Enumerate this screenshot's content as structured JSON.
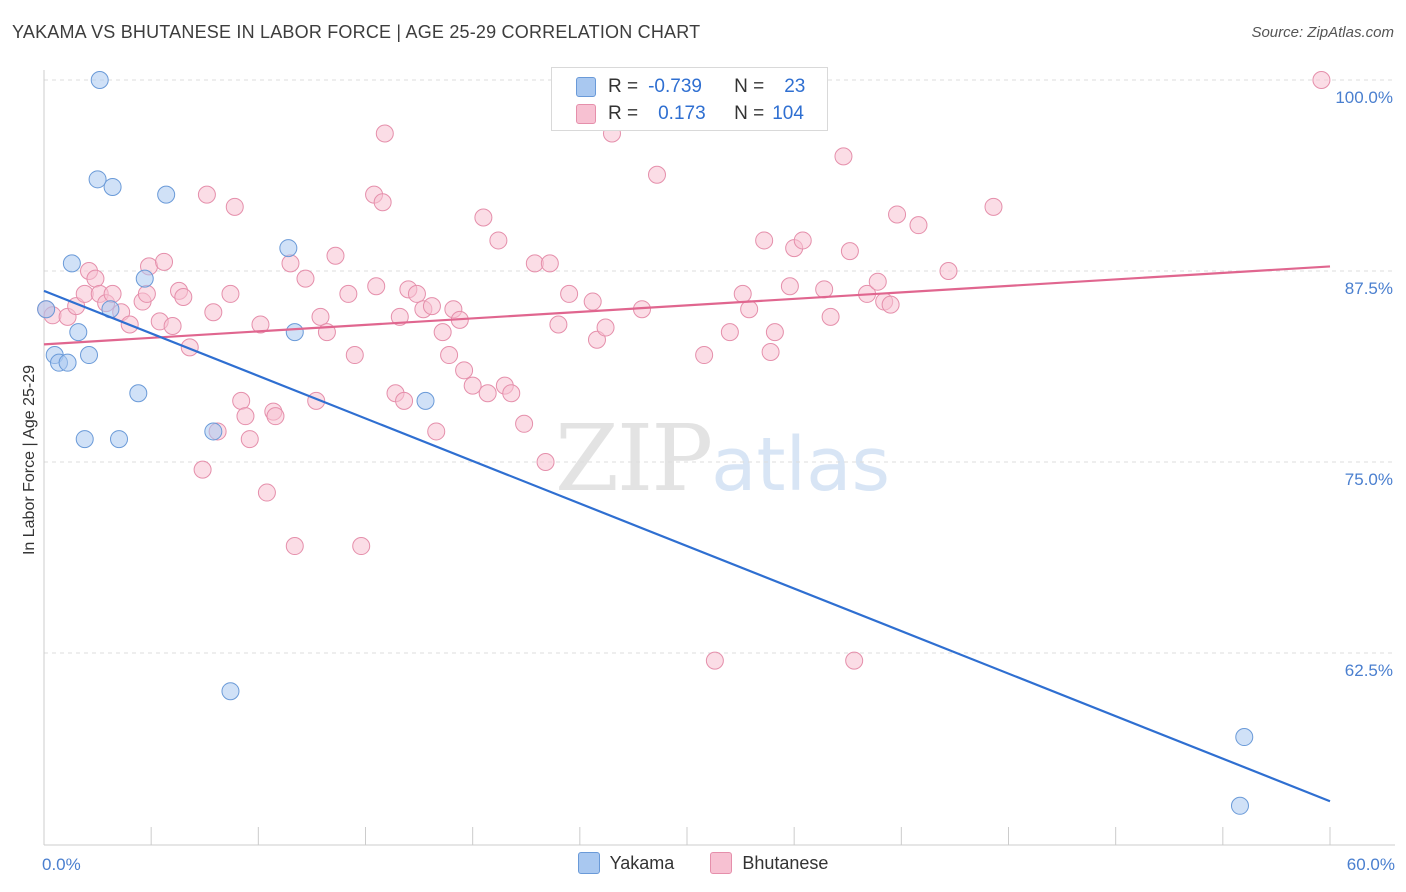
{
  "title": "YAKAMA VS BHUTANESE IN LABOR FORCE | AGE 25-29 CORRELATION CHART",
  "source": "Source: ZipAtlas.com",
  "watermark": {
    "zip": "ZIP",
    "atlas": "atlas"
  },
  "legend": {
    "yakama": {
      "r_label": "R =",
      "r_value": "-0.739",
      "n_label": "N =",
      "n_value": "23"
    },
    "bhutanese": {
      "r_label": "R =",
      "r_value": "0.173",
      "n_label": "N =",
      "n_value": "104"
    }
  },
  "colors": {
    "yakama_fill": "#a9c8f0",
    "yakama_stroke": "#6a9ad8",
    "yakama_line": "#2f6fd1",
    "bhutanese_fill": "#f7c1d2",
    "bhutanese_stroke": "#e58fab",
    "bhutanese_line": "#e0668f",
    "grid": "#dddddd",
    "tick_label": "#4a7fcf"
  },
  "chart_data": {
    "type": "scatter",
    "title": "YAKAMA VS BHUTANESE IN LABOR FORCE | AGE 25-29 CORRELATION CHART",
    "xlabel": "",
    "ylabel": "In Labor Force | Age 25-29",
    "xlim": [
      0,
      60
    ],
    "ylim": [
      51.0,
      102.0
    ],
    "x_tick_labels": [
      {
        "value": 0,
        "label": "0.0%"
      },
      {
        "value": 60,
        "label": "60.0%"
      }
    ],
    "y_tick_labels": [
      {
        "value": 100.0,
        "label": "100.0%"
      },
      {
        "value": 87.5,
        "label": "87.5%"
      },
      {
        "value": 75.0,
        "label": "75.0%"
      },
      {
        "value": 62.5,
        "label": "62.5%"
      }
    ],
    "grid": true,
    "legend_position": "bottom-center",
    "series": [
      {
        "name": "Yakama",
        "points": [
          [
            0.1,
            85.0
          ],
          [
            0.5,
            82.0
          ],
          [
            0.7,
            81.5
          ],
          [
            1.1,
            81.5
          ],
          [
            1.3,
            88.0
          ],
          [
            1.6,
            83.5
          ],
          [
            1.9,
            76.5
          ],
          [
            2.1,
            82.0
          ],
          [
            2.5,
            93.5
          ],
          [
            2.6,
            100.0
          ],
          [
            3.2,
            93.0
          ],
          [
            3.5,
            76.5
          ],
          [
            3.1,
            85.0
          ],
          [
            4.4,
            79.5
          ],
          [
            4.7,
            87.0
          ],
          [
            5.7,
            92.5
          ],
          [
            7.9,
            77.0
          ],
          [
            8.7,
            60.0
          ],
          [
            11.4,
            89.0
          ],
          [
            11.7,
            83.5
          ],
          [
            17.8,
            79.0
          ],
          [
            56.0,
            57.0
          ],
          [
            55.8,
            52.5
          ]
        ],
        "trend": {
          "x": [
            0.0,
            60.0
          ],
          "y": [
            86.2,
            52.8
          ]
        }
      },
      {
        "name": "Bhutanese",
        "points": [
          [
            0.1,
            85.0
          ],
          [
            0.4,
            84.6
          ],
          [
            1.1,
            84.5
          ],
          [
            1.5,
            85.2
          ],
          [
            1.9,
            86.0
          ],
          [
            2.1,
            87.5
          ],
          [
            2.4,
            87.0
          ],
          [
            2.6,
            86.0
          ],
          [
            2.9,
            85.4
          ],
          [
            3.2,
            86.0
          ],
          [
            3.6,
            84.8
          ],
          [
            4.0,
            84.0
          ],
          [
            4.6,
            85.5
          ],
          [
            4.8,
            86.0
          ],
          [
            4.9,
            87.8
          ],
          [
            5.4,
            84.2
          ],
          [
            5.6,
            88.1
          ],
          [
            6.0,
            83.9
          ],
          [
            6.3,
            86.2
          ],
          [
            6.5,
            85.8
          ],
          [
            6.8,
            82.5
          ],
          [
            7.4,
            74.5
          ],
          [
            7.6,
            92.5
          ],
          [
            7.9,
            84.8
          ],
          [
            8.1,
            77.0
          ],
          [
            8.7,
            86.0
          ],
          [
            8.9,
            91.7
          ],
          [
            9.2,
            79.0
          ],
          [
            9.4,
            78.0
          ],
          [
            9.6,
            76.5
          ],
          [
            10.1,
            84.0
          ],
          [
            10.4,
            73.0
          ],
          [
            10.7,
            78.3
          ],
          [
            10.8,
            78.0
          ],
          [
            11.5,
            88.0
          ],
          [
            11.7,
            69.5
          ],
          [
            12.2,
            87.0
          ],
          [
            12.7,
            79.0
          ],
          [
            12.9,
            84.5
          ],
          [
            13.2,
            83.5
          ],
          [
            13.6,
            88.5
          ],
          [
            14.2,
            86.0
          ],
          [
            14.5,
            82.0
          ],
          [
            14.8,
            69.5
          ],
          [
            15.4,
            92.5
          ],
          [
            15.5,
            86.5
          ],
          [
            15.8,
            92.0
          ],
          [
            15.9,
            96.5
          ],
          [
            16.4,
            79.5
          ],
          [
            16.6,
            84.5
          ],
          [
            16.8,
            79.0
          ],
          [
            17.0,
            86.3
          ],
          [
            17.4,
            86.0
          ],
          [
            17.7,
            85.0
          ],
          [
            18.1,
            85.2
          ],
          [
            18.3,
            77.0
          ],
          [
            18.6,
            83.5
          ],
          [
            18.9,
            82.0
          ],
          [
            19.1,
            85.0
          ],
          [
            19.4,
            84.3
          ],
          [
            19.6,
            81.0
          ],
          [
            20.0,
            80.0
          ],
          [
            20.5,
            91.0
          ],
          [
            20.7,
            79.5
          ],
          [
            21.2,
            89.5
          ],
          [
            21.5,
            80.0
          ],
          [
            21.8,
            79.5
          ],
          [
            22.4,
            77.5
          ],
          [
            22.9,
            88.0
          ],
          [
            23.4,
            75.0
          ],
          [
            23.6,
            88.0
          ],
          [
            24.0,
            84.0
          ],
          [
            24.5,
            86.0
          ],
          [
            25.6,
            85.5
          ],
          [
            25.8,
            83.0
          ],
          [
            26.2,
            83.8
          ],
          [
            26.5,
            96.5
          ],
          [
            27.9,
            85.0
          ],
          [
            28.6,
            93.8
          ],
          [
            30.8,
            82.0
          ],
          [
            31.3,
            62.0
          ],
          [
            32.0,
            83.5
          ],
          [
            32.6,
            86.0
          ],
          [
            32.9,
            85.0
          ],
          [
            33.6,
            89.5
          ],
          [
            33.9,
            82.2
          ],
          [
            34.1,
            83.5
          ],
          [
            34.8,
            86.5
          ],
          [
            35.0,
            89.0
          ],
          [
            35.4,
            89.5
          ],
          [
            36.4,
            86.3
          ],
          [
            36.7,
            84.5
          ],
          [
            37.3,
            95.0
          ],
          [
            37.6,
            88.8
          ],
          [
            37.8,
            62.0
          ],
          [
            38.4,
            86.0
          ],
          [
            38.9,
            86.8
          ],
          [
            39.2,
            85.5
          ],
          [
            39.5,
            85.3
          ],
          [
            39.8,
            91.2
          ],
          [
            40.8,
            90.5
          ],
          [
            42.2,
            87.5
          ],
          [
            44.3,
            91.7
          ],
          [
            59.6,
            100.0
          ]
        ],
        "trend": {
          "x": [
            0.0,
            60.0
          ],
          "y": [
            82.7,
            87.8
          ]
        }
      }
    ]
  }
}
